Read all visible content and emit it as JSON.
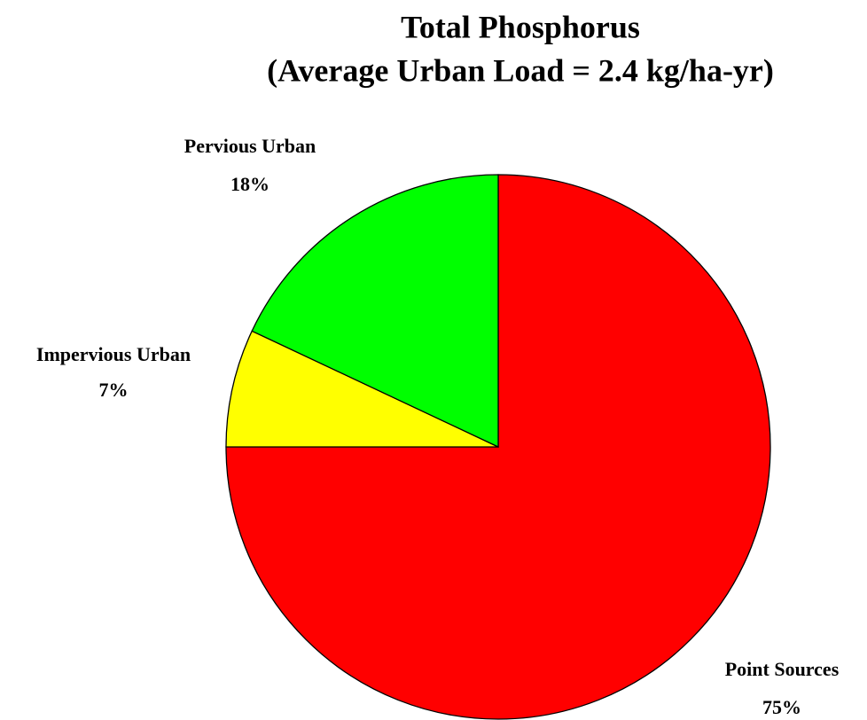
{
  "chart_data": {
    "type": "pie",
    "title": "Total Phosphorus",
    "subtitle": "(Average Urban Load = 2.4 kg/ha-yr)",
    "categories": [
      "Point Sources",
      "Impervious Urban",
      "Pervious Urban"
    ],
    "values": [
      75,
      7,
      18
    ],
    "value_labels": [
      "75%",
      "7%",
      "18%"
    ],
    "colors": [
      "#ff0000",
      "#ffff00",
      "#00ff00"
    ]
  }
}
